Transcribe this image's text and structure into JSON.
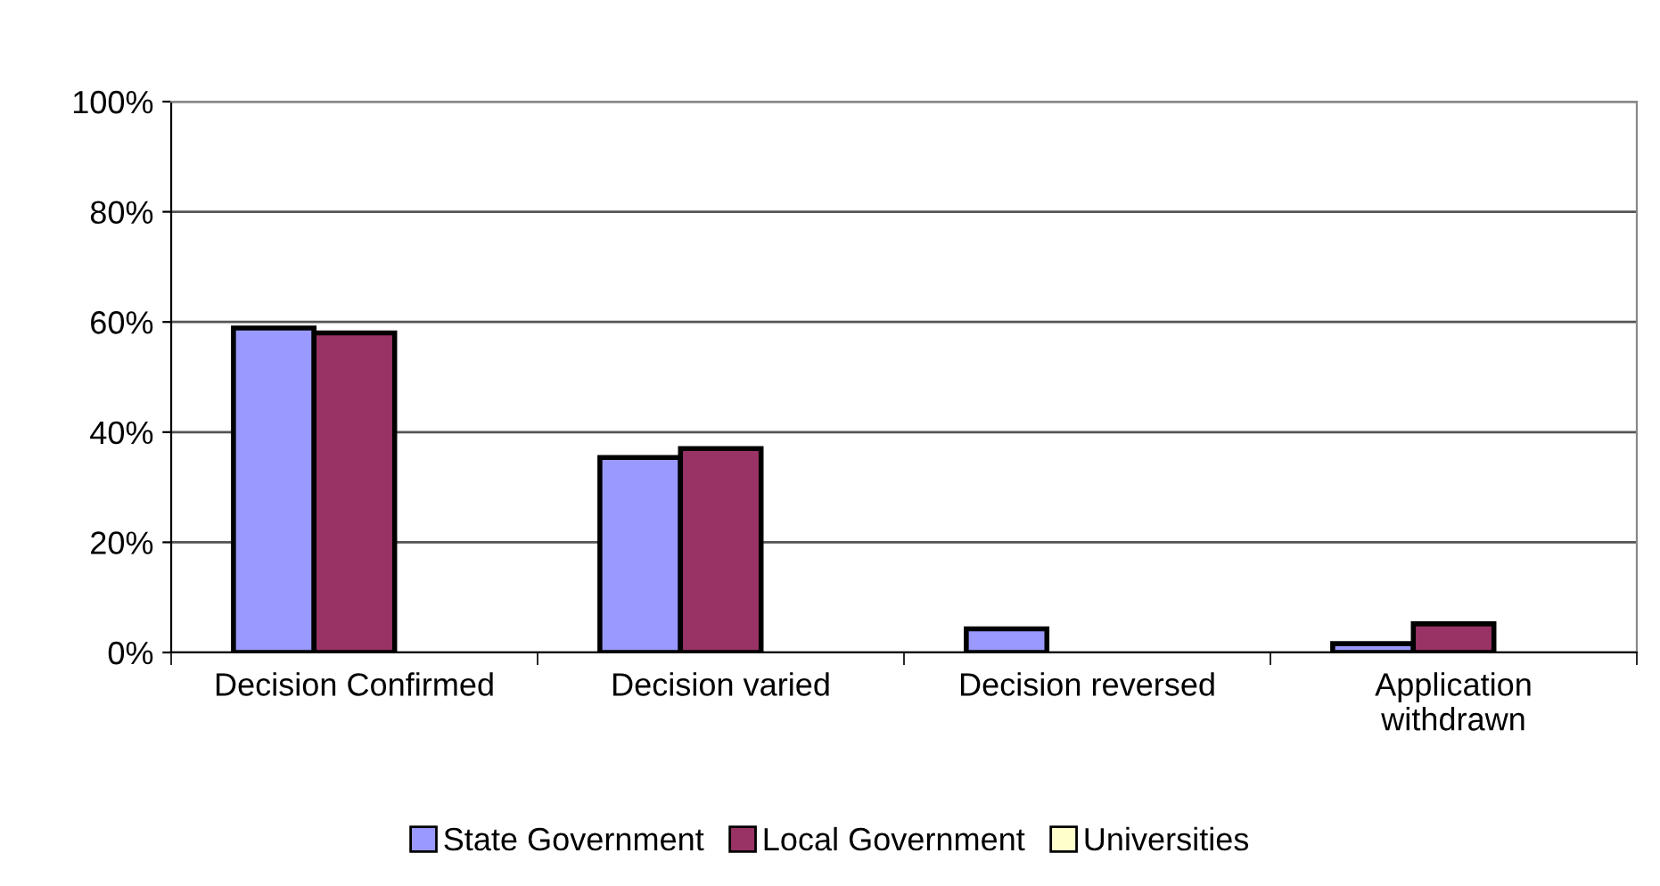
{
  "chart_data": {
    "type": "bar",
    "categories": [
      "Decision Confirmed",
      "Decision varied",
      "Decision reversed",
      "Application\nwithdrawn"
    ],
    "series": [
      {
        "name": "State Government",
        "color": "#9999ff",
        "values": [
          58.9,
          35.4,
          4.3,
          1.6
        ]
      },
      {
        "name": "Local Government",
        "color": "#993366",
        "values": [
          58.0,
          37.0,
          null,
          5.2
        ]
      },
      {
        "name": "Universities",
        "color": "#ffffcc",
        "values": [
          null,
          null,
          null,
          null
        ]
      }
    ],
    "ylim": [
      0,
      100
    ],
    "yticks": [
      {
        "value": 0,
        "label": "0%"
      },
      {
        "value": 20,
        "label": "20%"
      },
      {
        "value": 40,
        "label": "40%"
      },
      {
        "value": 60,
        "label": "60%"
      },
      {
        "value": 80,
        "label": "80%"
      },
      {
        "value": 100,
        "label": "100%"
      }
    ],
    "grid": "y",
    "legend": "bottom"
  }
}
